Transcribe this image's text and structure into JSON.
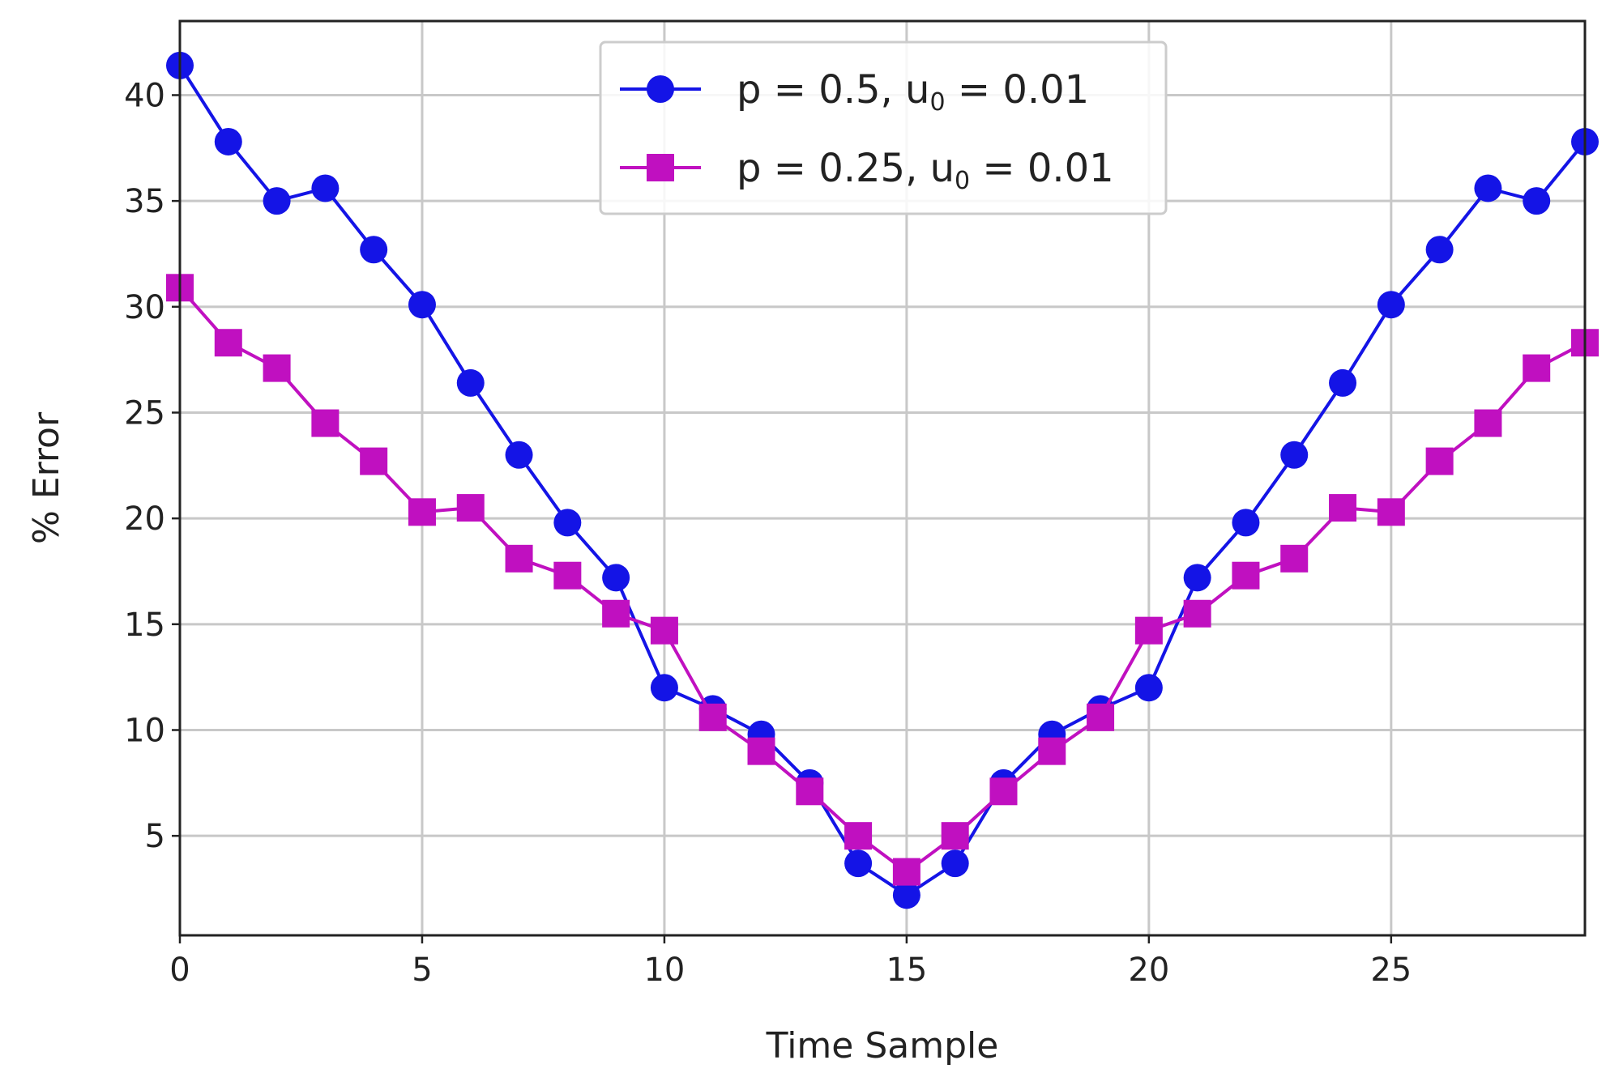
{
  "chart_data": {
    "type": "line",
    "title": "",
    "xlabel": "Time Sample",
    "ylabel": "% Error",
    "xlim": [
      0,
      29
    ],
    "ylim": [
      0.3,
      43.5
    ],
    "xticks": [
      0,
      5,
      10,
      15,
      20,
      25
    ],
    "yticks": [
      5,
      10,
      15,
      20,
      25,
      30,
      35,
      40
    ],
    "grid": true,
    "legend_position": "top-center",
    "x": [
      0,
      1,
      2,
      3,
      4,
      5,
      6,
      7,
      8,
      9,
      10,
      11,
      12,
      13,
      14,
      15,
      16,
      17,
      18,
      19,
      20,
      21,
      22,
      23,
      24,
      25,
      26,
      27,
      28,
      29
    ],
    "series": [
      {
        "name": "p = 0.5, u",
        "name_sub": "0",
        "name_suffix": " = 0.01",
        "color": "#1414e6",
        "marker": "circle",
        "values": [
          41.4,
          37.8,
          35.0,
          35.6,
          32.7,
          30.1,
          26.4,
          23.0,
          19.8,
          17.2,
          12.0,
          11.0,
          9.8,
          7.5,
          3.7,
          2.2,
          3.7,
          7.5,
          9.8,
          11.0,
          12.0,
          17.2,
          19.8,
          23.0,
          26.4,
          30.1,
          32.7,
          35.6,
          35.0,
          37.8
        ]
      },
      {
        "name": "p = 0.25, u",
        "name_sub": "0",
        "name_suffix": " = 0.01",
        "color": "#c010c0",
        "marker": "square",
        "values": [
          30.9,
          28.3,
          27.1,
          24.5,
          22.7,
          20.3,
          20.5,
          18.1,
          17.3,
          15.5,
          14.7,
          10.6,
          9.0,
          7.1,
          5.0,
          3.3,
          5.0,
          7.1,
          9.0,
          10.6,
          14.7,
          15.5,
          17.3,
          18.1,
          20.5,
          20.3,
          22.7,
          24.5,
          27.1,
          28.3
        ]
      }
    ]
  }
}
